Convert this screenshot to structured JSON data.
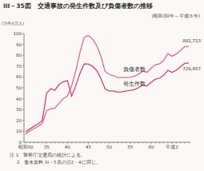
{
  "chart_data": {
    "type": "line",
    "title": "III－35図　交通事故の発生件数及び負傷者数の推移",
    "subtitle": "(昭和30年～平成６年)",
    "y_units": [
      "(万件)",
      "(万人)"
    ],
    "categories": [
      "昭和30",
      null,
      null,
      null,
      null,
      "35",
      null,
      null,
      null,
      null,
      "40",
      null,
      null,
      null,
      null,
      "45",
      null,
      null,
      null,
      null,
      "50",
      null,
      null,
      null,
      null,
      "55",
      null,
      null,
      null,
      null,
      "60",
      null,
      null,
      null,
      null,
      "平成2",
      null,
      null,
      null,
      null
    ],
    "series": [
      {
        "name": "負傷者数",
        "color": "#e0649c",
        "values": [
          7.6,
          10.3,
          12.5,
          14.5,
          17.5,
          28.9,
          30.8,
          31.3,
          35.9,
          40.1,
          42.6,
          51.8,
          65.6,
          82.8,
          96.7,
          98.1,
          94.9,
          88.9,
          79.0,
          65.1,
          62.3,
          61.4,
          59.4,
          59.4,
          59.7,
          59.9,
          60.8,
          62.6,
          65.4,
          64.4,
          68.2,
          71.3,
          72.2,
          75.3,
          81.5,
          79.1,
          81.1,
          84.4,
          87.9,
          88.2
        ]
      },
      {
        "name": "発生件数",
        "color": "#cf3f78",
        "values": [
          9.3,
          12.2,
          14.6,
          16.9,
          20.1,
          44.9,
          49.3,
          47.9,
          53.1,
          55.7,
          56.7,
          42.5,
          52.1,
          63.5,
          72.1,
          71.9,
          70.0,
          66.0,
          58.7,
          49.1,
          47.2,
          47.1,
          46.1,
          46.4,
          47.1,
          47.7,
          48.5,
          50.2,
          52.7,
          51.8,
          55.2,
          58.0,
          59.0,
          61.5,
          66.1,
          64.3,
          66.2,
          69.5,
          72.5,
          72.9
        ]
      }
    ],
    "annotations": [
      {
        "text": "881,723"
      },
      {
        "text": "729,457"
      }
    ],
    "ylim": [
      0,
      100
    ],
    "yticks": [
      0,
      10,
      20,
      30,
      40,
      50,
      60,
      70,
      80,
      90,
      100
    ],
    "grid": false,
    "notes": [
      "注 1　警察庁交通局の統計による。",
      "2　巻末資料 III－5表の注2・4に同じ。"
    ]
  }
}
